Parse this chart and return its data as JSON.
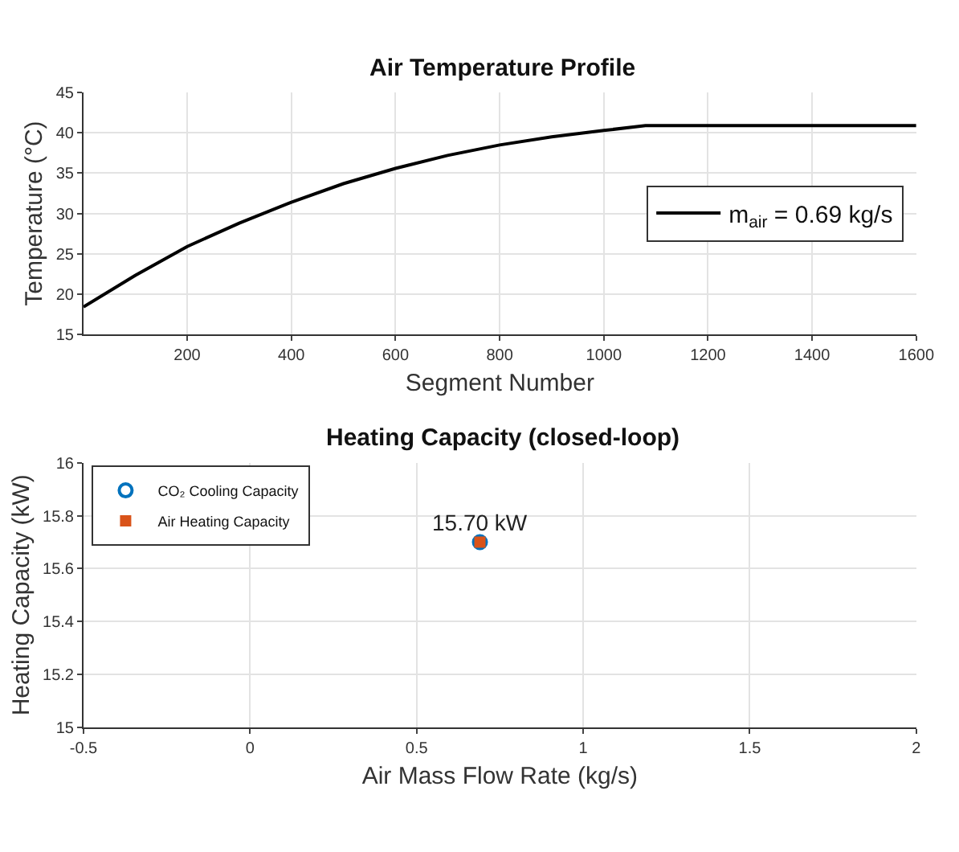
{
  "chart_data": [
    {
      "type": "line",
      "title": "Air Temperature Profile",
      "xlabel": "Segment Number",
      "ylabel": "Temperature (°C)",
      "x": [
        1,
        100,
        200,
        300,
        400,
        500,
        600,
        700,
        800,
        900,
        1000,
        1080,
        1600
      ],
      "series": [
        {
          "name": "m$_{air}$ = 0.69 kg/s",
          "color": "#000000",
          "values": [
            18.4,
            22.3,
            25.9,
            28.8,
            31.4,
            33.7,
            35.6,
            37.2,
            38.5,
            39.5,
            40.3,
            40.9,
            40.9
          ]
        }
      ],
      "xlim": [
        1,
        1600
      ],
      "xticks": [
        200,
        400,
        600,
        800,
        1000,
        1200,
        1400,
        1600
      ],
      "ylim": [
        15,
        45
      ],
      "yticks": [
        15,
        20,
        25,
        30,
        35,
        40,
        45
      ],
      "grid": true,
      "legend": "right",
      "marker": "none",
      "line_style": "solid"
    },
    {
      "type": "scatter",
      "title": "Heating Capacity (closed-loop)",
      "xlabel": "Air Mass Flow Rate (kg/s)",
      "ylabel": "Heating Capacity (kW)",
      "series": [
        {
          "name": "CO₂ Cooling Capacity",
          "color": "#0072bd",
          "x": [
            0.69
          ],
          "values": [
            15.7
          ],
          "marker": "circle"
        },
        {
          "name": "Air Heating Capacity",
          "color": "#d95319",
          "x": [
            0.69
          ],
          "values": [
            15.7
          ],
          "marker": "square"
        }
      ],
      "annotations": [
        {
          "text": "15.70 kW",
          "x": 0.69,
          "y": 15.7
        }
      ],
      "xlim": [
        -0.5,
        2
      ],
      "xticks": [
        -0.5,
        0,
        0.5,
        1,
        1.5,
        2
      ],
      "ylim": [
        15,
        16
      ],
      "yticks": [
        15,
        15.2,
        15.4,
        15.6,
        15.8,
        16
      ],
      "grid": true,
      "legend": "top left"
    }
  ]
}
